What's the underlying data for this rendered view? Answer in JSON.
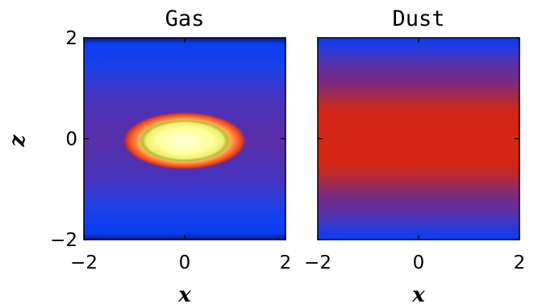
{
  "chart_data": [
    {
      "type": "heatmap",
      "title": "Gas",
      "xlabel": "x",
      "ylabel": "z",
      "xlim": [
        -2,
        2
      ],
      "ylim": [
        -2,
        2
      ],
      "xticks": [
        "-2",
        "0",
        "2"
      ],
      "yticks": [
        "-2",
        "0",
        "2"
      ],
      "colors": {
        "background": "#5a2fa8",
        "edge": "#0a3cf0",
        "ring_outer": "#e23a1a",
        "ring_mid": "#ffa040",
        "core": "#ffffc0"
      },
      "feature": {
        "shape": "ellipse",
        "center": [
          0,
          0
        ],
        "semi_axis_x": 1.3,
        "semi_axis_z": 0.55
      }
    },
    {
      "type": "heatmap",
      "title": "Dust",
      "xlabel": "x",
      "ylabel": "",
      "xlim": [
        -2,
        2
      ],
      "ylim": [
        -2,
        2
      ],
      "xticks": [
        "-2",
        "0",
        "2"
      ],
      "yticks": [],
      "colors": {
        "edge": "#0a3cf0",
        "mid": "#5a2fa8",
        "core": "#d42515"
      },
      "feature": {
        "shape": "horizontal-band",
        "center": 0,
        "half_width_z": 0.75
      }
    }
  ]
}
